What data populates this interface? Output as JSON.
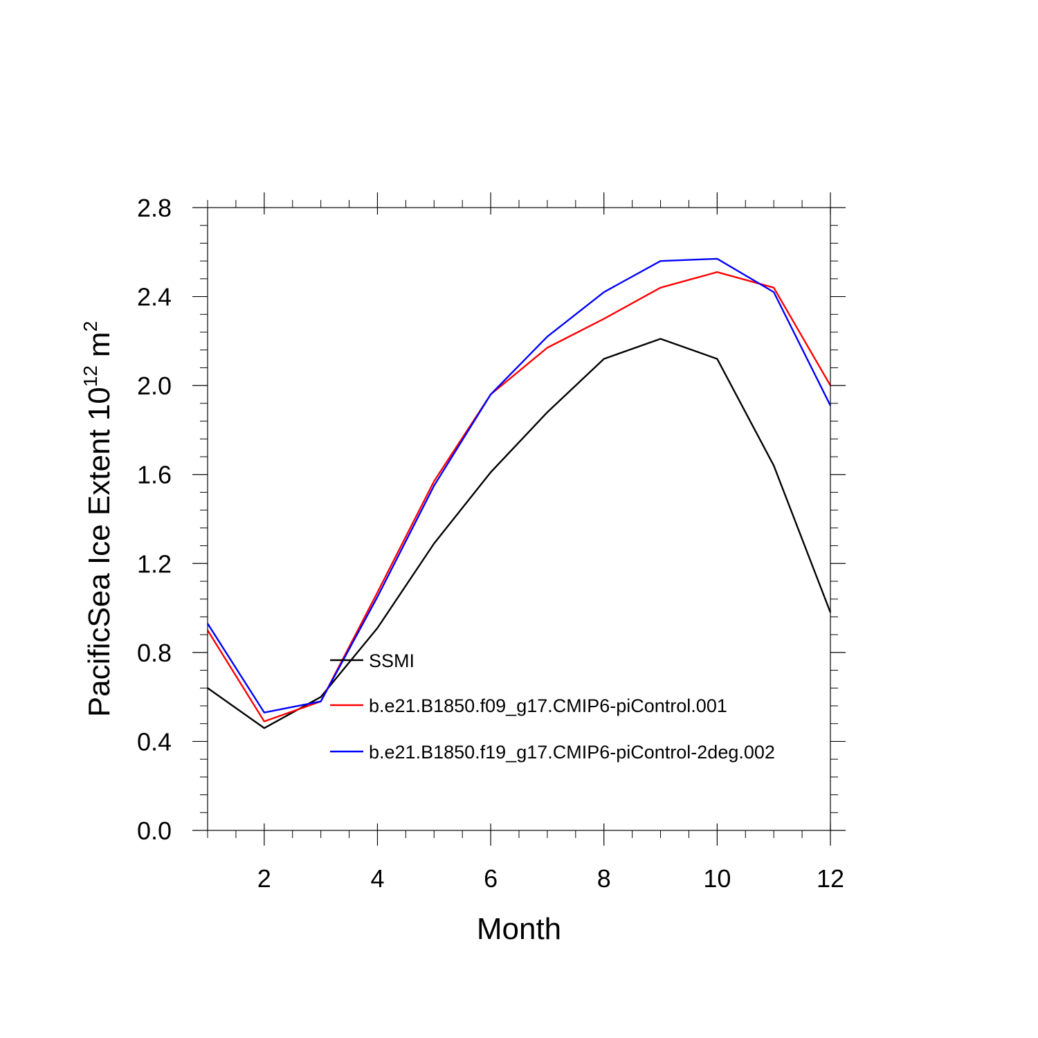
{
  "chart_data": {
    "type": "line",
    "title": "",
    "xlabel": "Month",
    "ylabel_main": "PacificSea Ice Extent 10",
    "ylabel_exponent": "12",
    "ylabel_unit": "m",
    "ylabel_unit_exponent": "2",
    "xlim": [
      1,
      12
    ],
    "ylim": [
      0.0,
      2.8
    ],
    "x_ticks": [
      2,
      4,
      6,
      8,
      10,
      12
    ],
    "x_tick_labels": [
      "2",
      "4",
      "6",
      "8",
      "10",
      "12"
    ],
    "y_ticks": [
      0.0,
      0.4,
      0.8,
      1.2,
      1.6,
      2.0,
      2.4,
      2.8
    ],
    "y_tick_labels": [
      "0.0",
      "0.4",
      "0.8",
      "1.2",
      "1.6",
      "2.0",
      "2.4",
      "2.8"
    ],
    "grid": false,
    "legend_position": "center",
    "x": [
      1,
      2,
      3,
      4,
      5,
      6,
      7,
      8,
      9,
      10,
      11,
      12
    ],
    "series": [
      {
        "name": "SSMI",
        "color": "#000000",
        "values": [
          0.64,
          0.46,
          0.6,
          0.91,
          1.29,
          1.61,
          1.88,
          2.12,
          2.21,
          2.12,
          1.64,
          0.98
        ]
      },
      {
        "name": "b.e21.B1850.f09_g17.CMIP6-piControl.001",
        "color": "#ff0000",
        "values": [
          0.9,
          0.49,
          0.58,
          1.07,
          1.57,
          1.96,
          2.17,
          2.3,
          2.44,
          2.51,
          2.44,
          2.0
        ]
      },
      {
        "name": "b.e21.B1850.f19_g17.CMIP6-piControl-2deg.002",
        "color": "#0000ff",
        "values": [
          0.93,
          0.53,
          0.58,
          1.05,
          1.55,
          1.96,
          2.22,
          2.42,
          2.56,
          2.57,
          2.42,
          1.91
        ]
      }
    ]
  }
}
